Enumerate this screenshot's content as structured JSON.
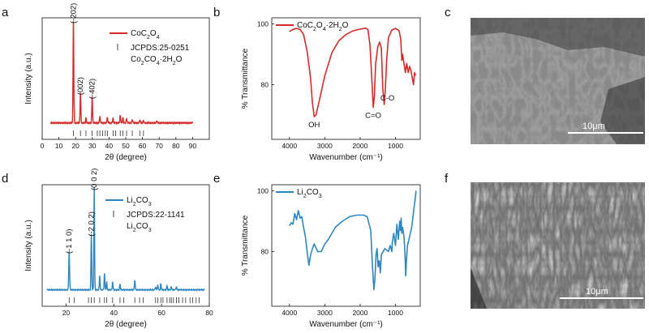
{
  "panels": [
    {
      "letter": "a"
    },
    {
      "letter": "b"
    },
    {
      "letter": "c"
    },
    {
      "letter": "d"
    },
    {
      "letter": "e"
    },
    {
      "letter": "f"
    }
  ],
  "colors": {
    "red": "#d62a2a",
    "blue": "#2e86c1",
    "ink": "#111111"
  },
  "chart_data": [
    {
      "panel": "a",
      "type": "line",
      "xlabel": "2θ (degree)",
      "ylabel": "Intensity (a.u.)",
      "xlim": [
        0,
        100
      ],
      "xticks": [
        0,
        10,
        20,
        30,
        40,
        50,
        60,
        70,
        80,
        90
      ],
      "yticks": [],
      "series": [
        {
          "name": "CoC2O4",
          "color": "#d62a2a",
          "baseline": 0.05,
          "x_range": [
            5,
            90
          ],
          "peaks": [
            [
              18.7,
              1.0,
              0.45
            ],
            [
              22.9,
              0.3,
              0.45
            ],
            [
              29.9,
              0.26,
              0.45
            ],
            [
              26.2,
              0.05,
              0.4
            ],
            [
              34.5,
              0.06,
              0.5
            ],
            [
              39.0,
              0.05,
              0.5
            ],
            [
              42.4,
              0.04,
              0.5
            ],
            [
              46.7,
              0.07,
              0.5
            ],
            [
              48.3,
              0.05,
              0.5
            ],
            [
              50.5,
              0.04,
              0.5
            ],
            [
              53.9,
              0.03,
              0.5
            ],
            [
              58.4,
              0.03,
              0.5
            ],
            [
              60.6,
              0.02,
              0.5
            ],
            [
              68.6,
              0.02,
              0.5
            ]
          ]
        }
      ],
      "reference": {
        "label": "JCPDS:25-0251",
        "formula": "Co2CO4·2H2O",
        "positions": [
          18.7,
          22.9,
          26.2,
          29.9,
          33.0,
          34.5,
          36.2,
          37.8,
          39.0,
          42.4,
          44.0,
          46.7,
          48.3,
          50.5,
          53.9,
          58.4,
          60.6
        ]
      },
      "annotations": [
        {
          "text": "(-202)",
          "x": 18.7,
          "h": 1.0
        },
        {
          "text": "(002)",
          "x": 22.9,
          "h": 0.3
        },
        {
          "text": "(-402)",
          "x": 29.9,
          "h": 0.26
        }
      ]
    },
    {
      "panel": "b",
      "type": "line",
      "xlabel": "Wavenumber (cm⁻¹)",
      "ylabel": "% Transmittance",
      "xlim": [
        4500,
        300
      ],
      "ylim": [
        62,
        102
      ],
      "xticks": [
        4000,
        3000,
        2000,
        1000
      ],
      "yticks": [
        80,
        100
      ],
      "series": [
        {
          "name": "CoC2O4·2H2O",
          "color": "#d62a2a",
          "points": [
            [
              4000,
              97.5
            ],
            [
              3900,
              98.2
            ],
            [
              3800,
              98.5
            ],
            [
              3700,
              98.2
            ],
            [
              3600,
              96.5
            ],
            [
              3500,
              91
            ],
            [
              3400,
              82
            ],
            [
              3350,
              74
            ],
            [
              3300,
              69.5
            ],
            [
              3250,
              70
            ],
            [
              3150,
              75
            ],
            [
              3000,
              83
            ],
            [
              2800,
              90.5
            ],
            [
              2600,
              94.5
            ],
            [
              2400,
              96.5
            ],
            [
              2200,
              97.7
            ],
            [
              2000,
              98.3
            ],
            [
              1850,
              98.6
            ],
            [
              1780,
              98.2
            ],
            [
              1720,
              93
            ],
            [
              1670,
              82
            ],
            [
              1630,
              72.5
            ],
            [
              1600,
              76
            ],
            [
              1560,
              87
            ],
            [
              1500,
              92.5
            ],
            [
              1450,
              94
            ],
            [
              1400,
              92
            ],
            [
              1360,
              79
            ],
            [
              1320,
              73.5
            ],
            [
              1290,
              78
            ],
            [
              1250,
              88
            ],
            [
              1200,
              95.5
            ],
            [
              1100,
              98
            ],
            [
              1000,
              98.5
            ],
            [
              900,
              97.8
            ],
            [
              850,
              95
            ],
            [
              820,
              88
            ],
            [
              800,
              90
            ],
            [
              760,
              87
            ],
            [
              720,
              84
            ],
            [
              680,
              87
            ],
            [
              640,
              84
            ],
            [
              600,
              86
            ],
            [
              560,
              84.5
            ],
            [
              520,
              82
            ],
            [
              490,
              80
            ],
            [
              460,
              84
            ],
            [
              430,
              83
            ]
          ]
        }
      ],
      "annotations": [
        {
          "text": "OH",
          "x": 3300,
          "y": 69.5
        },
        {
          "text": "C=O",
          "x": 1630,
          "y": 72.5
        },
        {
          "text": "C-O",
          "x": 1320,
          "y": 73.5
        }
      ]
    },
    {
      "panel": "d",
      "type": "line",
      "xlabel": "2θ (degree)",
      "ylabel": "Intensity (a.u.)",
      "xlim": [
        10,
        80
      ],
      "xticks": [
        20,
        40,
        60,
        80
      ],
      "yticks": [],
      "series": [
        {
          "name": "Li2CO3",
          "color": "#2e86c1",
          "baseline": 0.05,
          "x_range": [
            12,
            78
          ],
          "peaks": [
            [
              21.3,
              0.38,
              0.35
            ],
            [
              30.6,
              0.55,
              0.3
            ],
            [
              31.8,
              1.0,
              0.3
            ],
            [
              34.1,
              0.14,
              0.3
            ],
            [
              36.1,
              0.16,
              0.3
            ],
            [
              37.0,
              0.08,
              0.3
            ],
            [
              39.5,
              0.08,
              0.3
            ],
            [
              42.6,
              0.06,
              0.3
            ],
            [
              48.8,
              0.1,
              0.3
            ],
            [
              57.5,
              0.03,
              0.3
            ],
            [
              58.4,
              0.05,
              0.3
            ],
            [
              59.7,
              0.06,
              0.3
            ],
            [
              62.3,
              0.04,
              0.3
            ],
            [
              64.1,
              0.03,
              0.3
            ],
            [
              66.2,
              0.03,
              0.3
            ]
          ]
        }
      ],
      "reference": {
        "label": "JCPDS:22-1141",
        "formula": "Li2CO3",
        "positions": [
          21.3,
          23.4,
          29.4,
          30.6,
          31.8,
          34.1,
          36.1,
          37.0,
          39.5,
          42.6,
          44.1,
          48.8,
          50.8,
          52.3,
          57.5,
          58.4,
          59.7,
          60.6,
          62.3,
          63.4,
          64.1,
          65.0,
          66.2,
          67.3,
          68.8,
          70.1,
          71.9,
          73.0,
          74.5,
          75.7
        ]
      },
      "annotations": [
        {
          "text": "(-1 1 0)",
          "x": 21.3,
          "h": 0.38
        },
        {
          "text": "(-2 0 2)",
          "x": 30.6,
          "h": 0.55
        },
        {
          "text": "(0 0 2)",
          "x": 31.8,
          "h": 1.0
        }
      ]
    },
    {
      "panel": "e",
      "type": "line",
      "xlabel": "Wavenumber (cm⁻¹)",
      "ylabel": "% Transmittance",
      "xlim": [
        4500,
        300
      ],
      "ylim": [
        62,
        102
      ],
      "xticks": [
        4000,
        3000,
        2000,
        1000
      ],
      "yticks": [
        80,
        100
      ],
      "series": [
        {
          "name": "Li2CO3",
          "color": "#2e86c1",
          "points": [
            [
              4000,
              88.5
            ],
            [
              3950,
              89.5
            ],
            [
              3900,
              89
            ],
            [
              3850,
              92.5
            ],
            [
              3800,
              90.5
            ],
            [
              3750,
              93.5
            ],
            [
              3700,
              91
            ],
            [
              3650,
              91.5
            ],
            [
              3600,
              88
            ],
            [
              3550,
              85
            ],
            [
              3500,
              80
            ],
            [
              3450,
              75.5
            ],
            [
              3400,
              79
            ],
            [
              3350,
              81
            ],
            [
              3300,
              82.5
            ],
            [
              3200,
              80
            ],
            [
              3100,
              80
            ],
            [
              3000,
              82.5
            ],
            [
              2900,
              84
            ],
            [
              2700,
              88
            ],
            [
              2500,
              90
            ],
            [
              2300,
              91.5
            ],
            [
              2100,
              92
            ],
            [
              1900,
              92
            ],
            [
              1800,
              91.5
            ],
            [
              1700,
              87
            ],
            [
              1650,
              75
            ],
            [
              1610,
              67.5
            ],
            [
              1580,
              71
            ],
            [
              1550,
              79
            ],
            [
              1520,
              81
            ],
            [
              1490,
              75
            ],
            [
              1460,
              77
            ],
            [
              1430,
              73
            ],
            [
              1400,
              79
            ],
            [
              1300,
              81
            ],
            [
              1200,
              80
            ],
            [
              1150,
              82
            ],
            [
              1100,
              80
            ],
            [
              1090,
              83
            ],
            [
              1050,
              86
            ],
            [
              1000,
              82
            ],
            [
              960,
              89
            ],
            [
              920,
              84
            ],
            [
              880,
              90
            ],
            [
              860,
              87
            ],
            [
              840,
              91
            ],
            [
              820,
              86
            ],
            [
              800,
              88
            ],
            [
              760,
              85
            ],
            [
              730,
              79
            ],
            [
              710,
              72
            ],
            [
              690,
              77
            ],
            [
              660,
              82
            ],
            [
              620,
              84
            ],
            [
              580,
              86
            ],
            [
              540,
              88
            ],
            [
              500,
              92
            ],
            [
              470,
              95
            ],
            [
              440,
              97.5
            ],
            [
              420,
              100
            ]
          ]
        }
      ]
    }
  ],
  "images": [
    {
      "panel": "c",
      "scale_text": "10μm"
    },
    {
      "panel": "f",
      "scale_text": "10μm"
    }
  ]
}
